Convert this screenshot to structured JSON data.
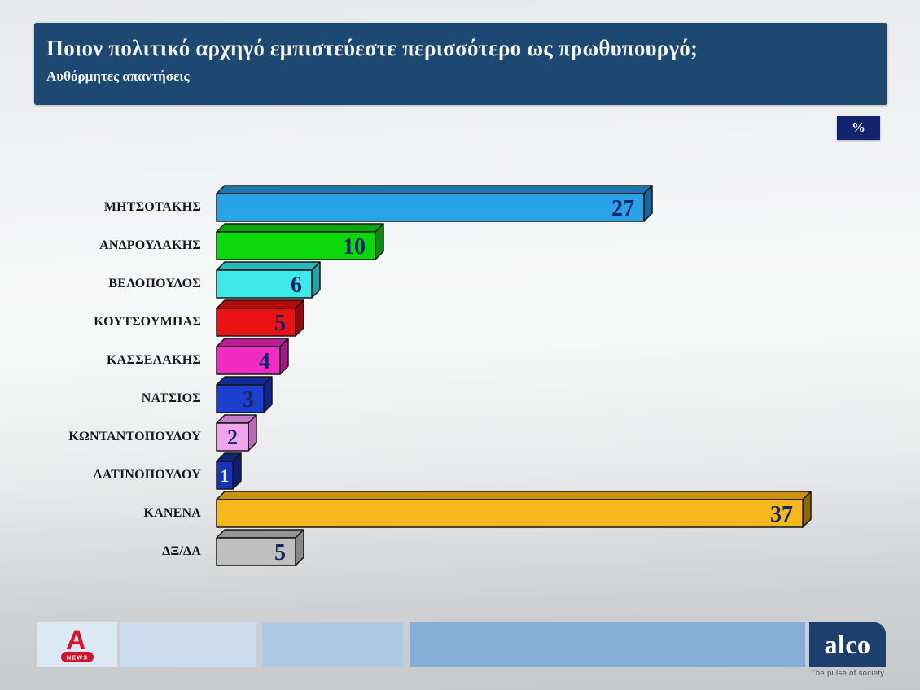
{
  "header": {
    "title": "Ποιον πολιτικό αρχηγό εμπιστεύεστε περισσότερο ως πρωθυπουργό;",
    "subtitle": "Αυθόρμητες απαντήσεις",
    "bg_color": "#1d4872"
  },
  "unit_badge": {
    "label": "%",
    "bg_color": "#13246e"
  },
  "chart_data": {
    "type": "bar",
    "orientation": "horizontal",
    "unit": "%",
    "title": "Ποιον πολιτικό αρχηγό εμπιστεύεστε περισσότερο ως πρωθυπουργό;",
    "subtitle": "Αυθόρμητες απαντήσεις",
    "xlim": [
      0,
      38
    ],
    "grid": false,
    "legend": false,
    "categories": [
      "ΜΗΤΣΟΤΑΚΗΣ",
      "ΑΝΔΡΟΥΛΑΚΗΣ",
      "ΒΕΛΟΠΟΥΛΟΣ",
      "ΚΟΥΤΣΟΥΜΠΑΣ",
      "ΚΑΣΣΕΛΑΚΗΣ",
      "ΝΑΤΣΙΟΣ",
      "ΚΩΝΤΑΝΤΟΠΟΥΛΟΥ",
      "ΛΑΤΙΝΟΠΟΥΛΟΥ",
      "ΚΑΝΕΝΑ",
      "ΔΞ/ΔΑ"
    ],
    "values": [
      27,
      10,
      6,
      5,
      4,
      3,
      2,
      1,
      37,
      5
    ],
    "bar_colors": [
      {
        "front": "#29a3e8",
        "top": "#1e78ad",
        "side": "#1565a0",
        "text": "#14256d"
      },
      {
        "front": "#09d909",
        "top": "#08a908",
        "side": "#059105",
        "text": "#14256d"
      },
      {
        "front": "#3fe9e9",
        "top": "#2cb7bc",
        "side": "#1fa3a8",
        "text": "#14256d"
      },
      {
        "front": "#ea1212",
        "top": "#b30b0b",
        "side": "#9c0808",
        "text": "#14256d"
      },
      {
        "front": "#f02cc4",
        "top": "#b81e96",
        "side": "#a5188a",
        "text": "#14256d"
      },
      {
        "front": "#1d3fd0",
        "top": "#142c97",
        "side": "#112687",
        "text": "#14256d"
      },
      {
        "front": "#f0a5ee",
        "top": "#c87cc8",
        "side": "#b86cb8",
        "text": "#14256d"
      },
      {
        "front": "#1734b2",
        "top": "#102478",
        "side": "#0d1f6a",
        "text": "#f2f2fa"
      },
      {
        "front": "#f5b91c",
        "top": "#c9940e",
        "side": "#8a6a06",
        "text": "#14256d"
      },
      {
        "front": "#bfbfbf",
        "top": "#949494",
        "side": "#878787",
        "text": "#14256d"
      }
    ]
  },
  "footer": {
    "band_colors": [
      "#dce8f4",
      "#cbdcee",
      "#adc9e3",
      "#84aed6"
    ],
    "alpha_logo": {
      "letter": "A",
      "news_label": "NEWS",
      "color": "#d6122a"
    },
    "alco": {
      "text": "alco",
      "tagline": "The pulse of society",
      "bg_color": "#1d3f6e"
    }
  }
}
